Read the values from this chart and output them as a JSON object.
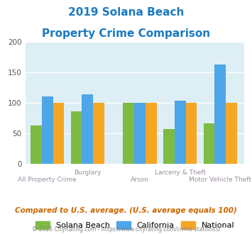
{
  "title_line1": "2019 Solana Beach",
  "title_line2": "Property Crime Comparison",
  "title_color": "#1a7abf",
  "categories": [
    "All Property Crime",
    "Burglary",
    "Arson",
    "Larceny & Theft",
    "Motor Vehicle Theft"
  ],
  "solana_beach": [
    63,
    86,
    100,
    57,
    66
  ],
  "california": [
    111,
    114,
    100,
    104,
    163
  ],
  "national": [
    100,
    100,
    100,
    100,
    100
  ],
  "color_solana": "#7dbb42",
  "color_california": "#4da6e8",
  "color_national": "#f5a623",
  "ylim": [
    0,
    200
  ],
  "yticks": [
    0,
    50,
    100,
    150,
    200
  ],
  "plot_bg": "#ddeef5",
  "xlabel_color": "#9b8ea0",
  "note_text": "Compared to U.S. average. (U.S. average equals 100)",
  "note_color": "#cc6600",
  "footer_text": "© 2025 CityRating.com - https://www.cityrating.com/crime-statistics/",
  "footer_color": "#888888",
  "legend_labels": [
    "Solana Beach",
    "California",
    "National"
  ],
  "row1_cats": [
    "Burglary",
    "Larceny & Theft"
  ],
  "row2_cats": [
    "All Property Crime",
    "Arson",
    "Motor Vehicle Theft"
  ]
}
